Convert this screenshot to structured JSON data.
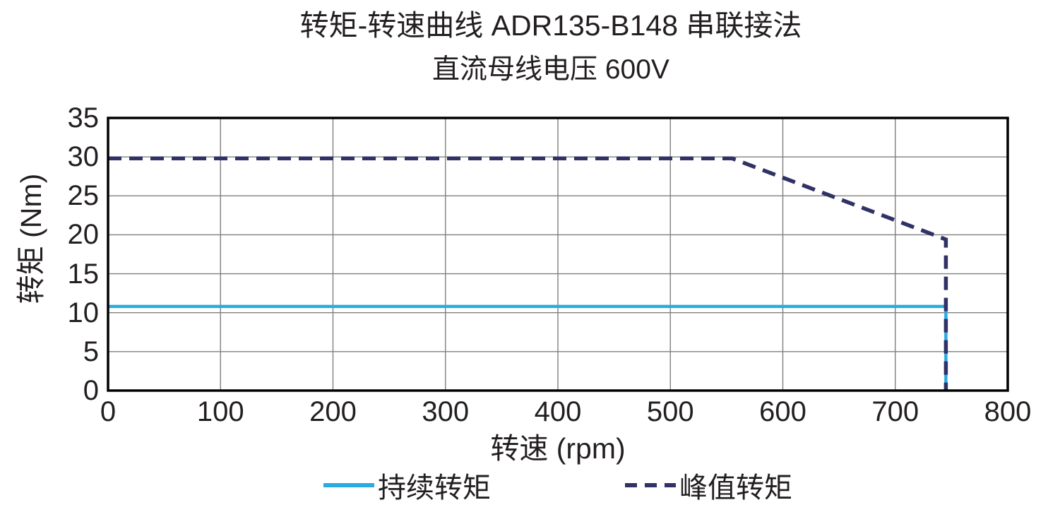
{
  "chart_data": {
    "type": "line",
    "title": "转矩-转速曲线 ADR135-B148 串联接法",
    "subtitle": "直流母线电压 600V",
    "xlabel": "转速 (rpm)",
    "ylabel": "转矩 (Nm)",
    "xlim": [
      0,
      800
    ],
    "ylim": [
      0,
      35
    ],
    "x_ticks": [
      0,
      100,
      200,
      300,
      400,
      500,
      600,
      700,
      800
    ],
    "y_ticks": [
      0,
      5,
      10,
      15,
      20,
      25,
      30,
      35
    ],
    "grid": true,
    "legend_position": "bottom",
    "colors": {
      "axis": "#000000",
      "grid": "#7f7f7f",
      "text": "#231f20",
      "continuous": "#29abe2",
      "peak": "#303266"
    },
    "series": [
      {
        "name": "持续转矩",
        "color": "#29abe2",
        "style": "solid",
        "points": [
          [
            0,
            10.8
          ],
          [
            745,
            10.8
          ],
          [
            745,
            0
          ]
        ]
      },
      {
        "name": "峰值转矩",
        "color": "#303266",
        "style": "dashed",
        "points": [
          [
            0,
            29.8
          ],
          [
            555,
            29.8
          ],
          [
            745,
            19.4
          ],
          [
            745,
            0
          ]
        ]
      }
    ]
  }
}
